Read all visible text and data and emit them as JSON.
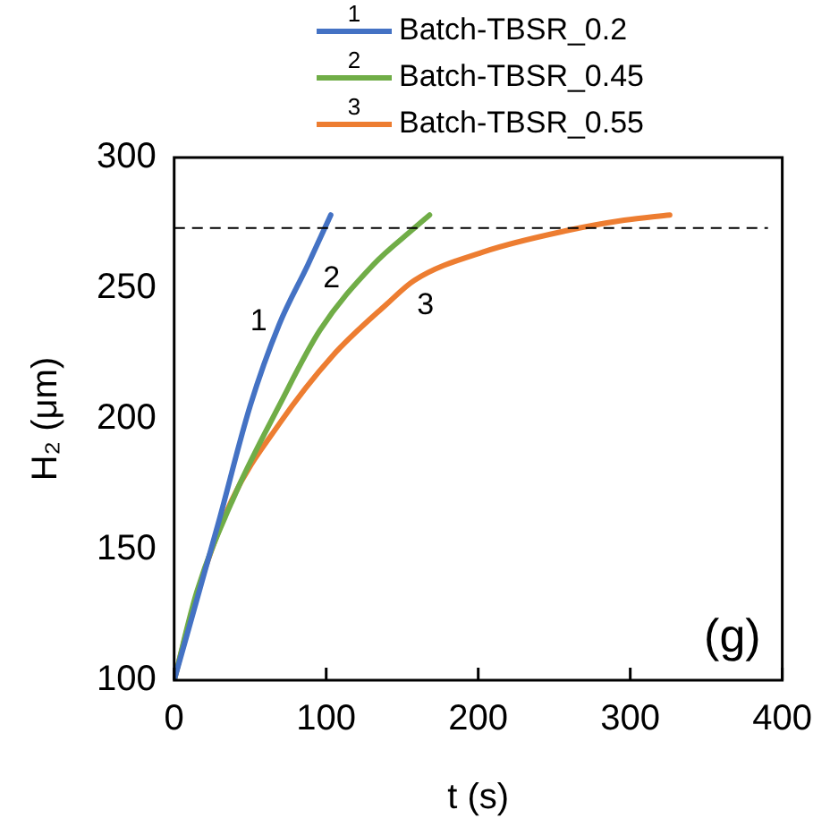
{
  "chart_data": {
    "type": "line",
    "xlabel": "t (s)",
    "ylabel": "H₂ (μm)",
    "xlim": [
      0,
      400
    ],
    "xticks": [
      0,
      100,
      200,
      300,
      400
    ],
    "ylim": [
      100,
      300
    ],
    "yticks": [
      100,
      150,
      200,
      250,
      300
    ],
    "grid": false,
    "legend": "top",
    "marker": "none",
    "line_style": "solid",
    "series": [
      {
        "name": "Batch-TBSR_0.2",
        "color": "#4472c4",
        "x": [
          0,
          29,
          50,
          69,
          88,
          103
        ],
        "values": [
          100,
          160,
          205,
          236,
          259,
          278
        ]
      },
      {
        "name": "Batch-TBSR_0.45",
        "color": "#70ad47",
        "x": [
          0,
          15,
          40,
          69,
          96,
          131,
          158,
          168
        ],
        "values": [
          100,
          134,
          171,
          205,
          234,
          259,
          273,
          278
        ]
      },
      {
        "name": "Batch-TBSR_0.55",
        "color": "#ed7d31",
        "x": [
          0,
          15,
          38,
          69,
          104,
          140,
          158,
          204,
          258,
          296,
          326
        ],
        "values": [
          100,
          133,
          169,
          198,
          224,
          244,
          253,
          264,
          272,
          276,
          278
        ]
      }
    ],
    "ref_lines": [
      {
        "axis": "y",
        "value": 273,
        "color": "#000000",
        "line_style": "dashed"
      }
    ],
    "annotations": [
      "1",
      "2",
      "3",
      "(g)"
    ]
  }
}
